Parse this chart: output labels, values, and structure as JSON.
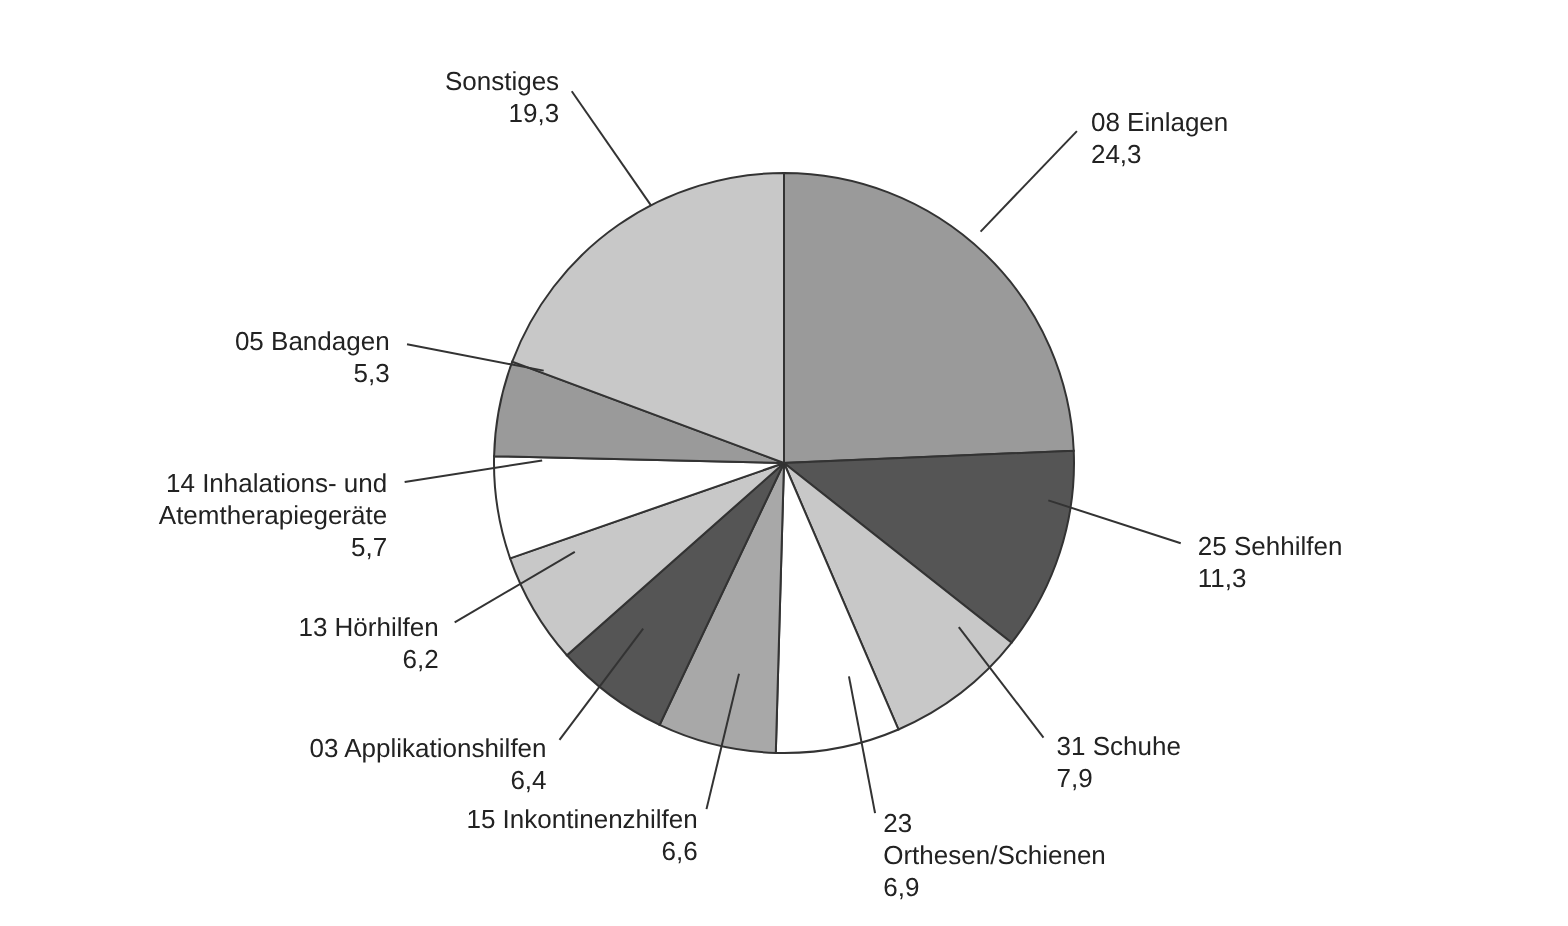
{
  "chart_data": {
    "type": "pie",
    "categories": [
      "08 Einlagen",
      "25 Sehhilfen",
      "31 Schuhe",
      "23\nOrthesen/Schienen",
      "15 Inkontinenzhilfen",
      "03 Applikationshilfen",
      "13 Hörhilfen",
      "14 Inhalations- und\nAtemtherapiegeräte",
      "05 Bandagen",
      "Sonstiges"
    ],
    "values": [
      24.3,
      11.3,
      7.9,
      6.9,
      6.6,
      6.4,
      6.2,
      5.7,
      5.3,
      19.3
    ],
    "colors": [
      "#9a9a9a",
      "#555555",
      "#c8c8c8",
      "#ffffff",
      "#a8a8a8",
      "#555555",
      "#c8c8c8",
      "#ffffff",
      "#9a9a9a",
      "#c8c8c8"
    ],
    "value_labels": [
      "24,3",
      "11,3",
      "7,9",
      "6,9",
      "6,6",
      "6,4",
      "6,2",
      "5,7",
      "5,3",
      "19,3"
    ]
  }
}
